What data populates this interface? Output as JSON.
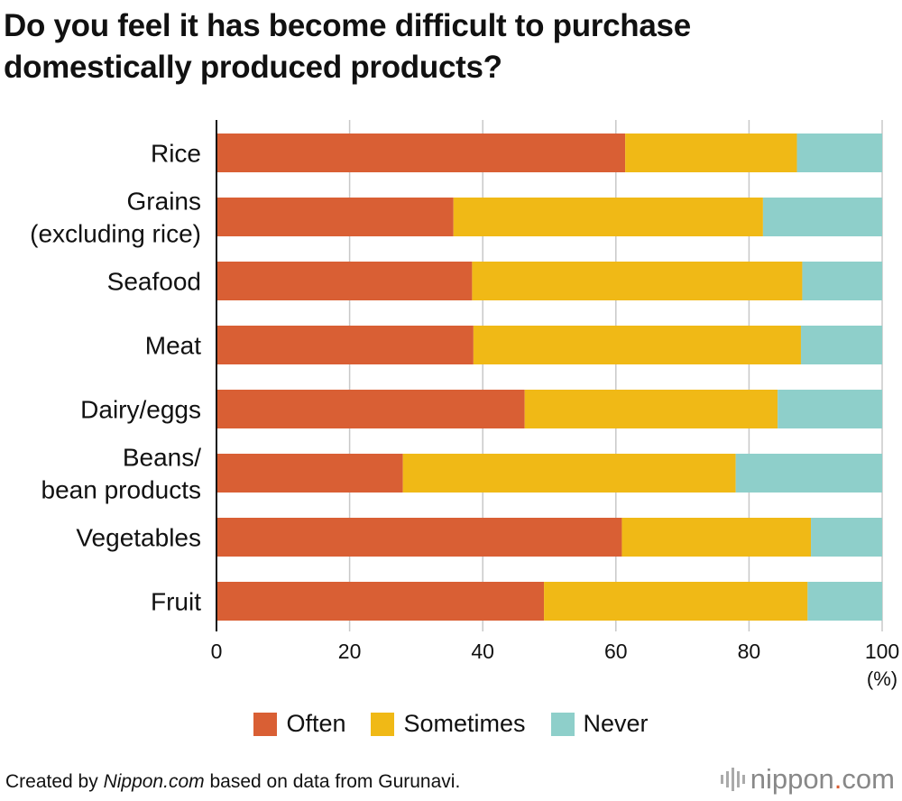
{
  "title_line1": "Do you feel it has become difficult to purchase",
  "title_line2": "domestically produced products?",
  "chart_data": {
    "type": "bar",
    "orientation": "horizontal",
    "stacked": true,
    "categories": [
      [
        "Rice"
      ],
      [
        "Grains",
        "(excluding rice)"
      ],
      [
        "Seafood"
      ],
      [
        "Meat"
      ],
      [
        "Dairy/eggs"
      ],
      [
        "Beans/",
        "bean products"
      ],
      [
        "Vegetables"
      ],
      [
        "Fruit"
      ]
    ],
    "series": [
      {
        "name": "Often",
        "color": "#d95f34",
        "values": [
          61.4,
          35.6,
          38.4,
          38.6,
          46.3,
          28.0,
          60.9,
          49.2
        ]
      },
      {
        "name": "Sometimes",
        "color": "#f0b916",
        "values": [
          25.8,
          46.5,
          49.6,
          49.2,
          38.0,
          50.0,
          28.4,
          39.6
        ]
      },
      {
        "name": "Never",
        "color": "#8ecfca",
        "values": [
          12.8,
          17.9,
          12.0,
          12.2,
          15.7,
          22.0,
          10.7,
          11.2
        ]
      }
    ],
    "xlim": [
      0,
      100
    ],
    "xticks": [
      0,
      20,
      40,
      60,
      80,
      100
    ],
    "xunit": "(%)",
    "grid": "vertical",
    "legend": "bottom-center"
  },
  "footer": {
    "prefix": "Created by ",
    "source": "Nippon.com",
    "suffix": " based on data from Gurunavi."
  },
  "brand": {
    "name": "nippon",
    "dot": ".",
    "tld": "com"
  }
}
